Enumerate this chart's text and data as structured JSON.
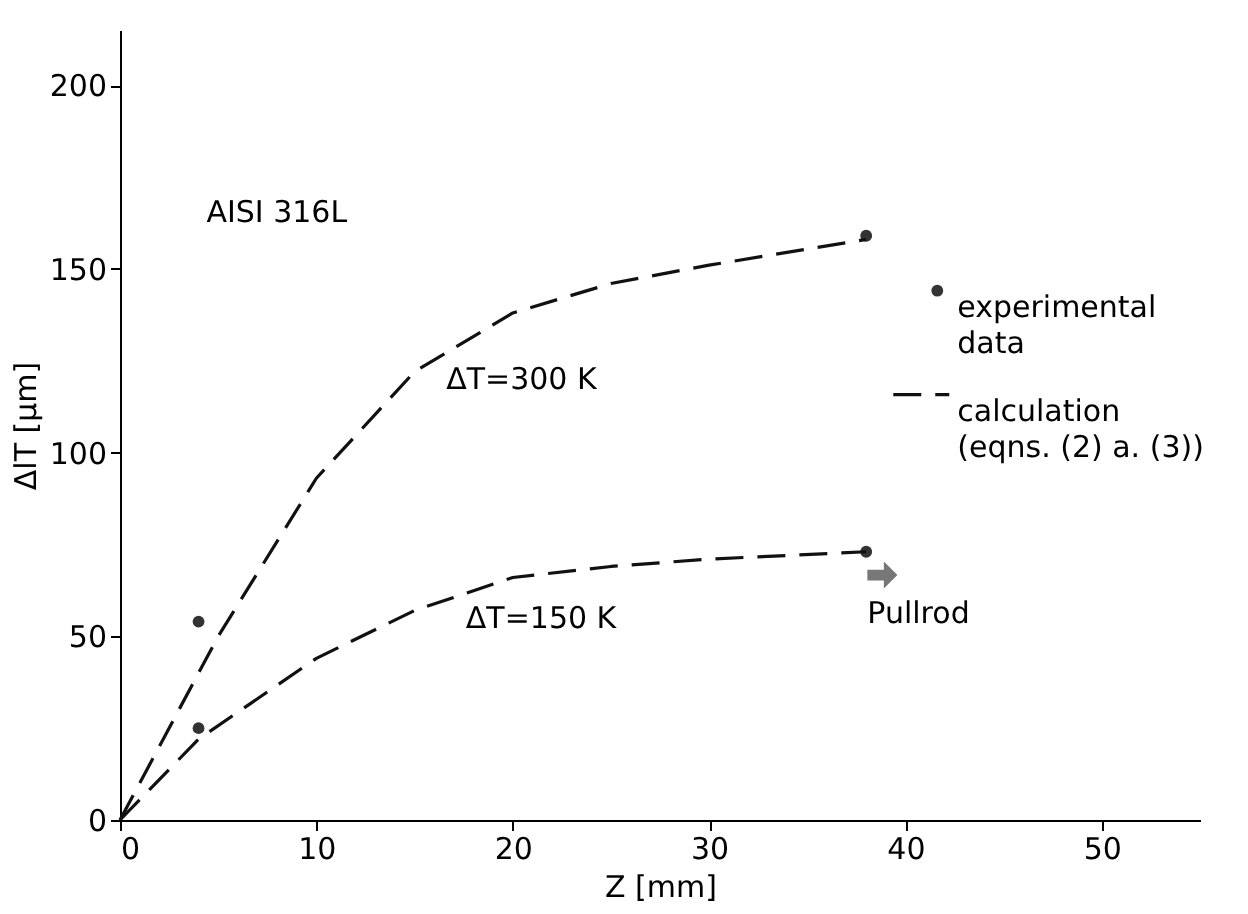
{
  "chart_data": {
    "type": "line",
    "xlabel": "Z [mm]",
    "ylabel": "ΔlT [µm]",
    "xlim": [
      0,
      55
    ],
    "ylim": [
      0,
      215
    ],
    "xticks": [
      0,
      10,
      20,
      30,
      40,
      50
    ],
    "yticks": [
      0,
      50,
      100,
      150,
      200
    ],
    "grid": false,
    "legend": "top right",
    "series": [
      {
        "name": "experimental data",
        "type": "scatter",
        "marker": "circle",
        "color": "#333333",
        "x": [
          4,
          4,
          38,
          38
        ],
        "values": [
          54,
          25,
          159,
          73
        ]
      },
      {
        "name": "calculation (eqns. (2) a. (3))",
        "line_style": "dashed",
        "color": "#111111",
        "x": [
          0,
          5,
          10,
          15,
          20,
          25,
          30,
          38
        ],
        "values": [
          0,
          50,
          93,
          122,
          138,
          146,
          151,
          158
        ]
      },
      {
        "line_style": "dashed",
        "color": "#111111",
        "x": [
          0,
          4,
          10,
          15,
          20,
          25,
          30,
          38
        ],
        "values": [
          0,
          22,
          44,
          57,
          66,
          69,
          71,
          73
        ]
      }
    ],
    "annotations": [
      "AISI 316L",
      {
        "text": "ΔT=300 K",
        "x": 16,
        "y": 126
      },
      {
        "text": "ΔT=150 K",
        "x": 17,
        "y": 61
      },
      "Pullrod"
    ]
  }
}
